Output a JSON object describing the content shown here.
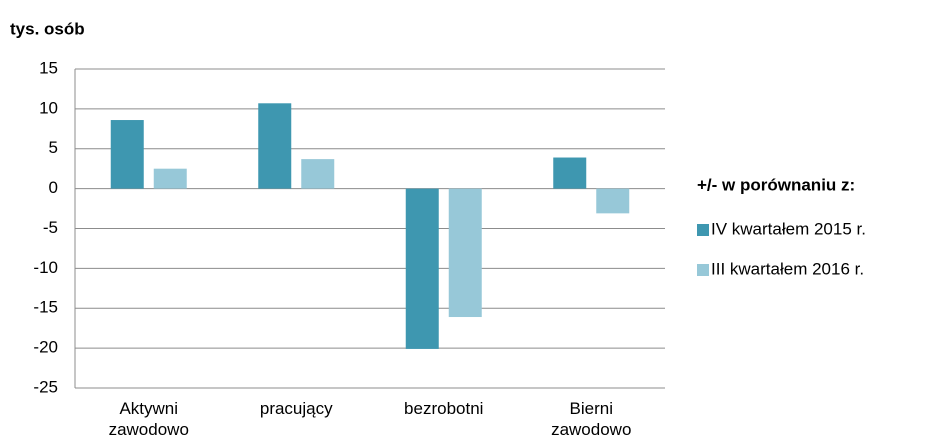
{
  "chart_data": {
    "type": "bar",
    "ylabel": "tys. osób",
    "legend_title": "+/- w porównaniu z:",
    "legend": "right",
    "categories": [
      "Aktywni zawodowo",
      "pracujący",
      "bezrobotni",
      "Bierni zawodowo"
    ],
    "series": [
      {
        "name": "IV kwartałem 2015 r.",
        "color": "#3e97b0",
        "values": [
          8.6,
          10.7,
          -20.1,
          3.9
        ]
      },
      {
        "name": "III kwartałem 2016 r.",
        "color": "#97c8d8",
        "values": [
          2.5,
          3.7,
          -16.1,
          -3.1
        ]
      }
    ],
    "ylim": [
      -25,
      15
    ],
    "yticks": [
      -25,
      -20,
      -15,
      -10,
      -5,
      0,
      5,
      10,
      15
    ],
    "grid": true
  }
}
